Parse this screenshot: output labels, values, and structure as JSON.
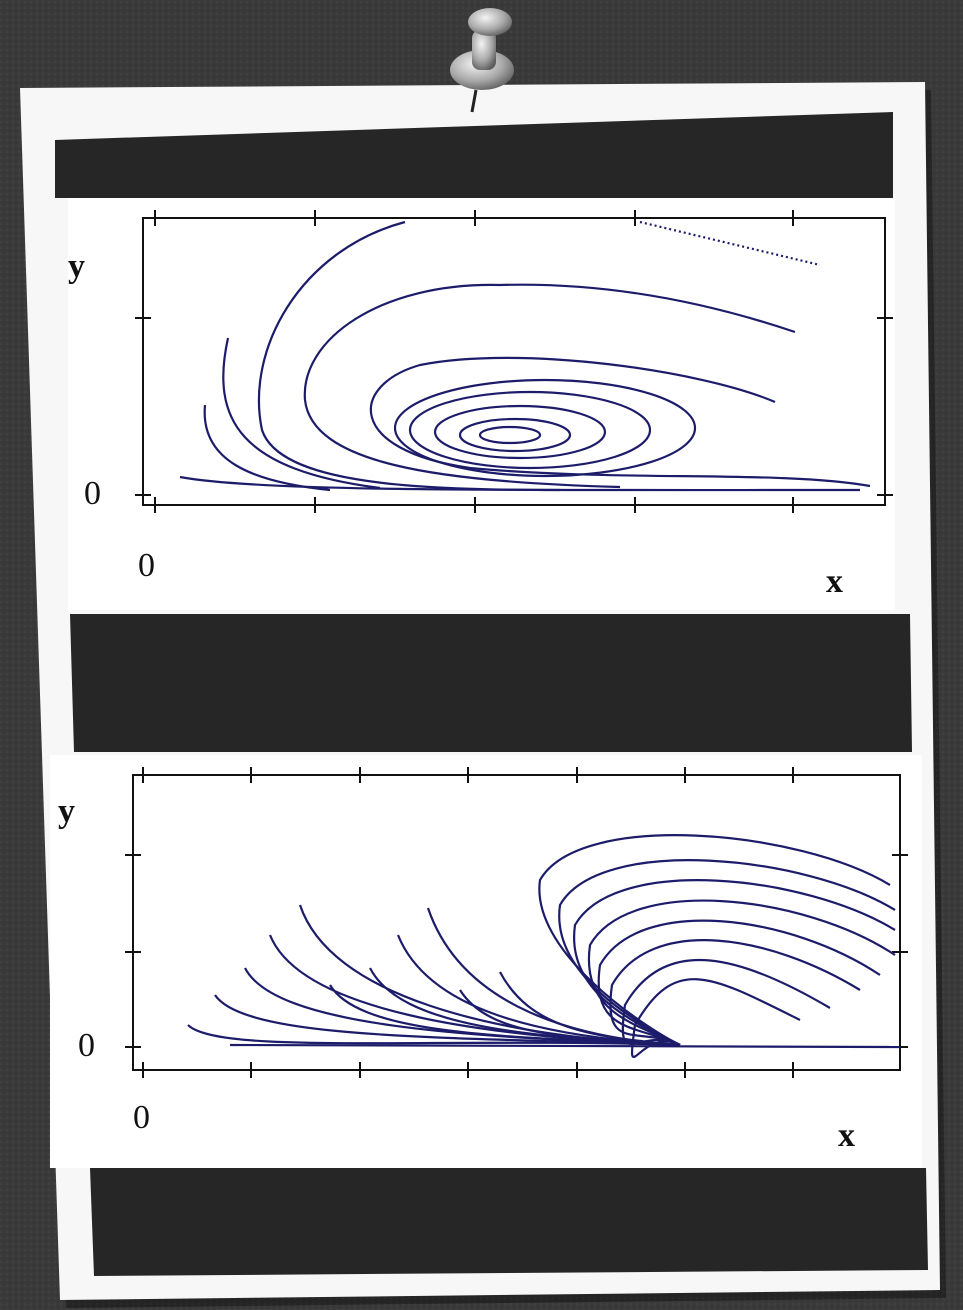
{
  "plots": [
    {
      "y_label": "y",
      "y_zero": "0",
      "x_zero": "0",
      "x_label": "x"
    },
    {
      "y_label": "y",
      "y_zero": "0",
      "x_zero": "0",
      "x_label": "x"
    }
  ]
}
